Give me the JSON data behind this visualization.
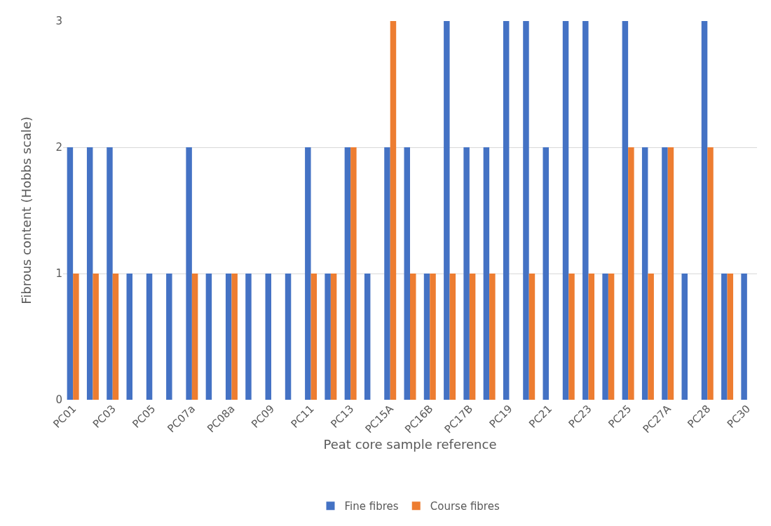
{
  "chart_data": {
    "type": "bar",
    "xlabel": "Peat core sample reference",
    "ylabel": "Fibrous content (Hobbs scale)",
    "categories": [
      "PC01",
      null,
      "PC03",
      null,
      "PC05",
      null,
      "PC07a",
      null,
      "PC08a",
      null,
      "PC09",
      null,
      "PC11",
      null,
      "PC13",
      null,
      "PC15A",
      null,
      "PC16B",
      null,
      "PC17B",
      null,
      "PC19",
      null,
      "PC21",
      null,
      "PC23",
      null,
      "PC25",
      null,
      "PC27A",
      null,
      "PC28",
      null,
      "PC30"
    ],
    "series": [
      {
        "name": "Fine fibres",
        "color": "#4472c4",
        "values": [
          2,
          2,
          2,
          1,
          1,
          1,
          2,
          1,
          1,
          1,
          1,
          1,
          2,
          1,
          2,
          1,
          2,
          2,
          1,
          3,
          2,
          2,
          3,
          3,
          2,
          3,
          3,
          1,
          3,
          2,
          2,
          1,
          3,
          1,
          1
        ]
      },
      {
        "name": "Course fibres",
        "color": "#ed7d31",
        "values": [
          1,
          1,
          1,
          0,
          0,
          0,
          1,
          0,
          1,
          0,
          0,
          0,
          1,
          1,
          2,
          0,
          3,
          1,
          1,
          1,
          1,
          1,
          0,
          1,
          0,
          1,
          1,
          1,
          2,
          1,
          2,
          0,
          2,
          1,
          0
        ]
      }
    ],
    "ylim": [
      0,
      3
    ],
    "yticks": [
      0,
      1,
      2,
      3
    ],
    "grid": "y",
    "legend": "bottom"
  }
}
